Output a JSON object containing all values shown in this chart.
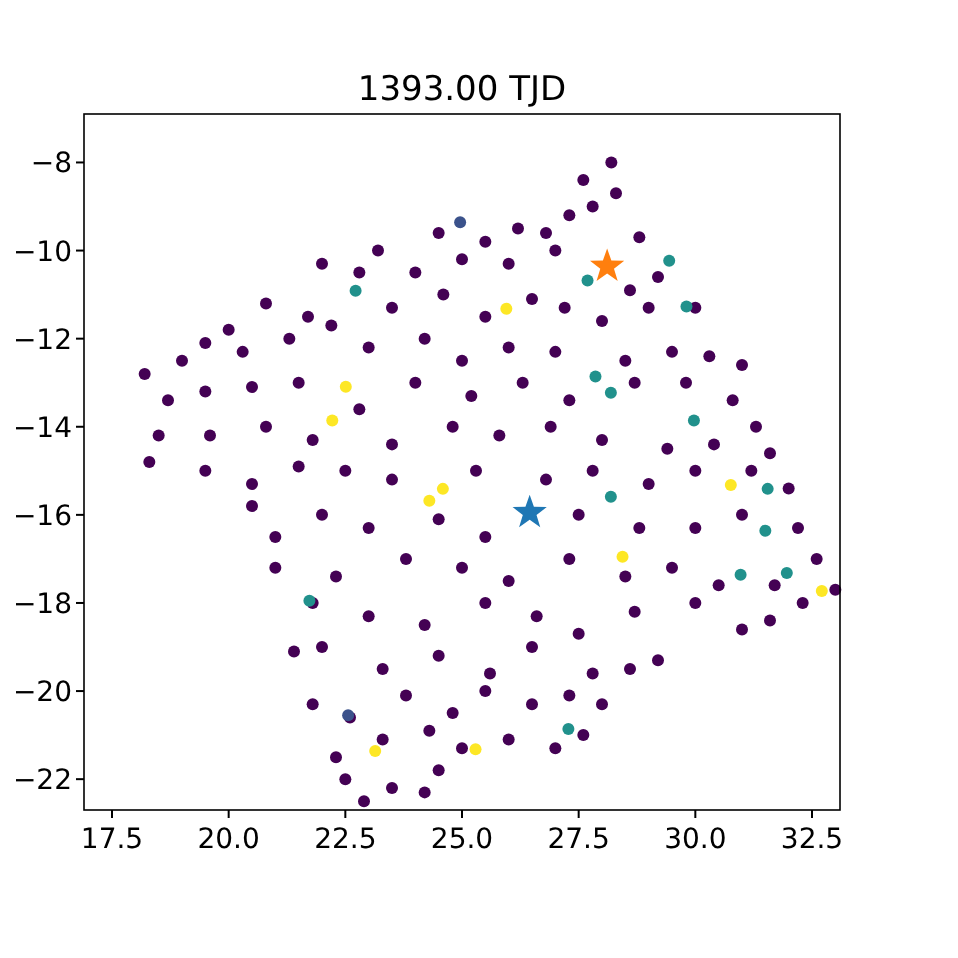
{
  "chart_data": {
    "type": "scatter",
    "title": "1393.00 TJD",
    "marker": "circle",
    "grid": false,
    "xlim": [
      16.9,
      33.1
    ],
    "ylim": [
      -22.7,
      -6.9
    ],
    "xticks": [
      {
        "value": 17.5,
        "label": "17.5"
      },
      {
        "value": 20,
        "label": "20.0"
      },
      {
        "value": 22.5,
        "label": "22.5"
      },
      {
        "value": 25,
        "label": "25.0"
      },
      {
        "value": 27.5,
        "label": "27.5"
      },
      {
        "value": 30,
        "label": "30.0"
      },
      {
        "value": 32.5,
        "label": "32.5"
      }
    ],
    "yticks": [
      {
        "value": -8,
        "label": "−8"
      },
      {
        "value": -10,
        "label": "−10"
      },
      {
        "value": -12,
        "label": "−12"
      },
      {
        "value": -14,
        "label": "−14"
      },
      {
        "value": -16,
        "label": "−16"
      },
      {
        "value": -18,
        "label": "−18"
      },
      {
        "value": -20,
        "label": "−20"
      },
      {
        "value": -22,
        "label": "−22"
      }
    ],
    "series": [
      {
        "color": "#440154",
        "x": [
          27.6,
          28.2,
          27.8,
          28.3,
          26.8,
          27.3,
          24.5,
          25.5,
          26.2,
          25,
          26,
          27,
          28.8,
          29.2,
          28.6,
          23.2,
          24,
          22,
          22.8,
          20.8,
          21.7,
          23.5,
          24.6,
          25.5,
          26.5,
          27.2,
          28,
          29,
          30,
          20,
          22.2,
          19.5,
          19,
          20.3,
          21.3,
          23,
          24.2,
          25,
          26,
          27,
          28.5,
          29.5,
          30.3,
          31,
          18.2,
          18.7,
          19.5,
          20.5,
          21.5,
          22.8,
          24,
          25.2,
          26.3,
          27.3,
          28.7,
          29.8,
          30.8,
          31.3,
          18.5,
          19.6,
          20.8,
          21.8,
          23.5,
          24.8,
          25.8,
          26.9,
          28,
          29.4,
          30.4,
          31.6,
          18.3,
          19.5,
          20.5,
          21.5,
          22.5,
          23.5,
          25.3,
          26.8,
          27.8,
          29,
          30,
          31.2,
          32,
          20.5,
          21,
          22,
          23,
          24.5,
          25.5,
          27.5,
          28.8,
          30,
          31,
          32.2,
          32.6,
          21,
          22.3,
          23.8,
          25,
          26,
          27.3,
          28.5,
          29.5,
          30.5,
          31.7,
          33,
          32.3,
          21.8,
          23,
          24.2,
          25.5,
          26.6,
          27.5,
          28.7,
          30,
          31,
          31.6,
          21.4,
          22,
          23.3,
          24.5,
          25.6,
          26.5,
          27.8,
          28.6,
          29.2,
          21.8,
          22.6,
          23.8,
          24.8,
          25.5,
          26.5,
          27.3,
          28,
          22.3,
          23.3,
          24.3,
          25,
          26,
          27,
          27.6,
          22.5,
          23.5,
          24.2,
          22.9,
          24.5
        ],
        "values": [
          -8.4,
          -8,
          -9,
          -8.7,
          -9.6,
          -9.2,
          -9.6,
          -9.8,
          -9.5,
          -10.2,
          -10.3,
          -10,
          -9.7,
          -10.6,
          -10.9,
          -10,
          -10.5,
          -10.3,
          -10.5,
          -11.2,
          -11.5,
          -11.3,
          -11,
          -11.5,
          -11.1,
          -11.3,
          -11.6,
          -11.3,
          -11.3,
          -11.8,
          -11.7,
          -12.1,
          -12.5,
          -12.3,
          -12,
          -12.2,
          -12,
          -12.5,
          -12.2,
          -12.3,
          -12.5,
          -12.3,
          -12.4,
          -12.6,
          -12.8,
          -13.4,
          -13.2,
          -13.1,
          -13,
          -13.6,
          -13,
          -13.3,
          -13,
          -13.4,
          -13,
          -13,
          -13.4,
          -14,
          -14.2,
          -14.2,
          -14,
          -14.3,
          -14.4,
          -14,
          -14.2,
          -14,
          -14.3,
          -14.5,
          -14.4,
          -14.6,
          -14.8,
          -15,
          -15.3,
          -14.9,
          -15,
          -15.2,
          -15,
          -15.2,
          -15,
          -15.3,
          -15,
          -15,
          -15.4,
          -15.8,
          -16.5,
          -16,
          -16.3,
          -16.1,
          -16.5,
          -16,
          -16.3,
          -16.3,
          -16,
          -16.3,
          -17,
          -17.2,
          -17.4,
          -17,
          -17.2,
          -17.5,
          -17,
          -17.4,
          -17.2,
          -17.6,
          -17.6,
          -17.7,
          -18,
          -18,
          -18.3,
          -18.5,
          -18,
          -18.3,
          -18.7,
          -18.2,
          -18,
          -18.6,
          -18.4,
          -19.1,
          -19,
          -19.5,
          -19.2,
          -19.6,
          -19,
          -19.6,
          -19.5,
          -19.3,
          -20.3,
          -20.6,
          -20.1,
          -20.5,
          -20,
          -20.3,
          -20.1,
          -20.3,
          -21.5,
          -21.1,
          -20.9,
          -21.3,
          -21.1,
          -21.3,
          -21,
          -22,
          -22.2,
          -22.3,
          -22.5,
          -21.8
        ]
      },
      {
        "color": "#21918c",
        "x": [
          22.72,
          29.44,
          27.69,
          29.81,
          27.86,
          28.19,
          29.97,
          28.19,
          21.73,
          27.28,
          31.55,
          31.5,
          30.97,
          31.96
        ],
        "values": [
          -10.91,
          -10.23,
          -10.68,
          -11.27,
          -12.86,
          -13.23,
          -13.86,
          -15.59,
          -17.95,
          -20.86,
          -15.41,
          -16.36,
          -17.36,
          -17.32
        ]
      },
      {
        "color": "#3b528b",
        "x": [
          24.96,
          22.56
        ],
        "values": [
          -9.36,
          -20.55
        ]
      },
      {
        "color": "#fde725",
        "x": [
          22.51,
          22.22,
          25.95,
          24.59,
          24.3,
          28.44,
          23.14,
          25.29,
          30.76,
          32.71
        ],
        "values": [
          -13.09,
          -13.86,
          -11.32,
          -15.41,
          -15.68,
          -16.95,
          -21.36,
          -21.32,
          -15.32,
          -17.73
        ]
      },
      {
        "color": "#ff7f0e",
        "marker": "star",
        "x": [
          28.11
        ],
        "values": [
          -10.36
        ]
      },
      {
        "color": "#1f77b4",
        "marker": "star",
        "x": [
          26.45
        ],
        "values": [
          -15.95
        ]
      }
    ]
  }
}
